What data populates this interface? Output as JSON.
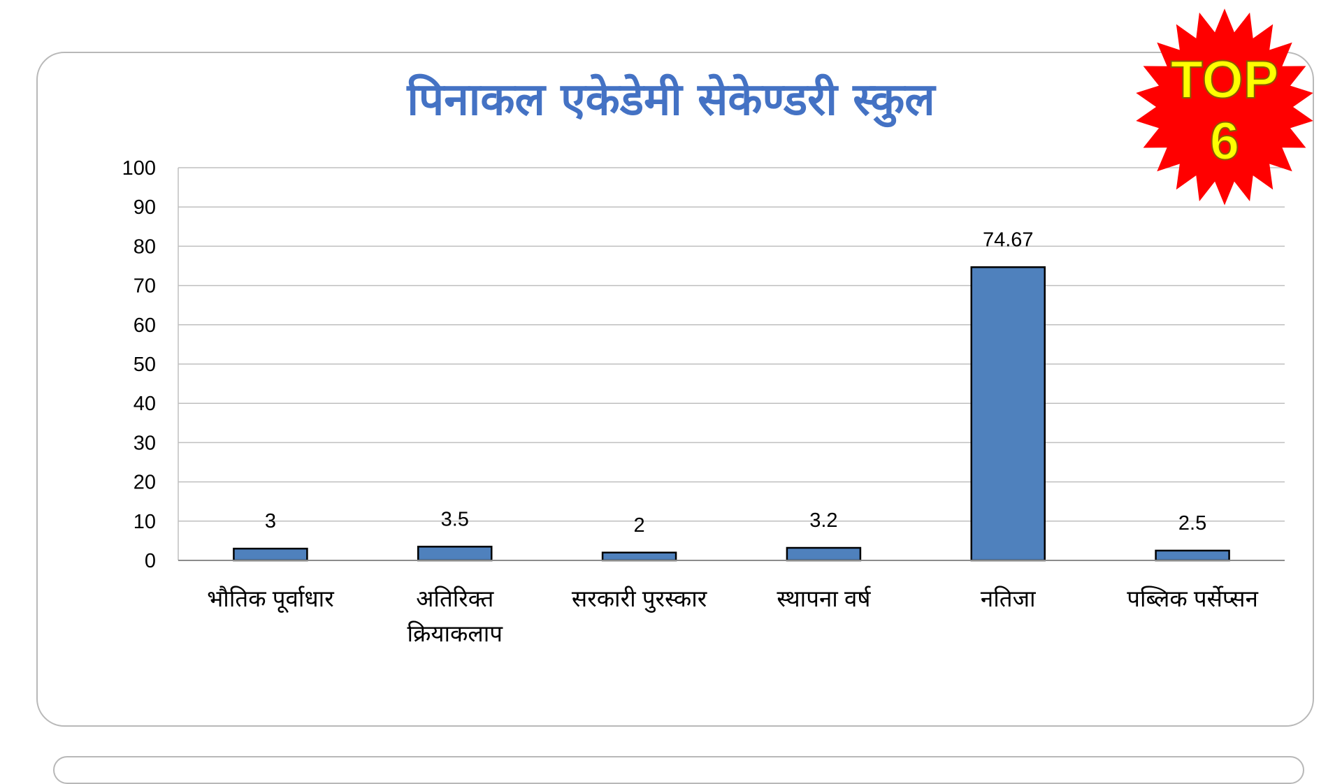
{
  "title": "पिनाकल एकेडेमी सेकेण्डरी स्कुल",
  "badge": {
    "line1": "TOP",
    "line2": "6",
    "star_color": "#ff0000",
    "text_color": "#ffff00"
  },
  "chart_data": {
    "type": "bar",
    "categories": [
      [
        "भौतिक पूर्वाधार"
      ],
      [
        "अतिरिक्त",
        "क्रियाकलाप"
      ],
      [
        "सरकारी पुरस्कार"
      ],
      [
        "स्थापना वर्ष"
      ],
      [
        "नतिजा"
      ],
      [
        "पब्लिक पर्सेप्सन"
      ]
    ],
    "values": [
      3,
      3.5,
      2,
      3.2,
      74.67,
      2.5
    ],
    "data_labels": [
      "3",
      "3.5",
      "2",
      "3.2",
      "74.67",
      "2.5"
    ],
    "ylim": [
      0,
      100
    ],
    "yticks": [
      0,
      10,
      20,
      30,
      40,
      50,
      60,
      70,
      80,
      90,
      100
    ],
    "grid": true,
    "bar_color": "#4f81bd",
    "bar_edge": "#000000",
    "xlabel": "",
    "ylabel": ""
  }
}
